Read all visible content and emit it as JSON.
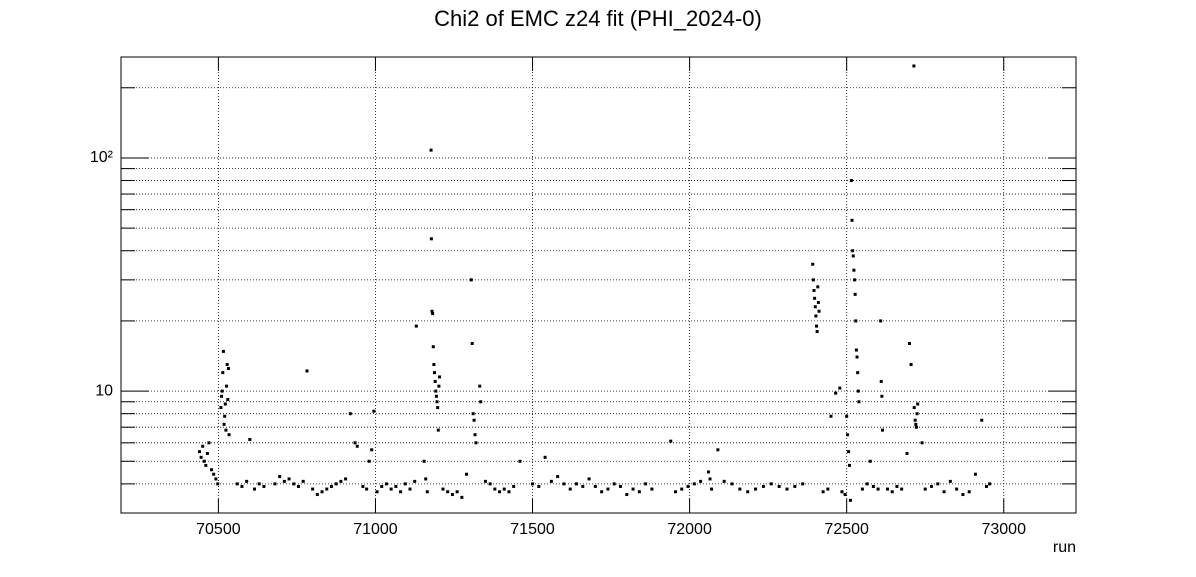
{
  "chart_data": {
    "type": "scatter",
    "title": "Chi2 of EMC z24 fit (PHI_2024-0)",
    "x_label": "run",
    "log_y": true,
    "grid": true,
    "color": "#000000",
    "xlim": [
      70190,
      73230
    ],
    "xticks": [
      70500,
      71000,
      71500,
      72000,
      72500,
      73000
    ],
    "ylim": [
      3,
      271
    ],
    "yticks": [
      10,
      {
        "value": 100,
        "label": "10²"
      }
    ],
    "minor_yticks": [
      4,
      5,
      6,
      7,
      8,
      9,
      20,
      30,
      40,
      50,
      60,
      70,
      80,
      90,
      200
    ],
    "x": [
      70440,
      70445,
      70450,
      70455,
      70460,
      70465,
      70470,
      70478,
      70485,
      70492,
      70498,
      70508,
      70510,
      70512,
      70514,
      70516,
      70518,
      70520,
      70522,
      70524,
      70526,
      70528,
      70530,
      70532,
      70534,
      70560,
      70575,
      70590,
      70600,
      70615,
      70630,
      70645,
      70680,
      70695,
      70710,
      70725,
      70740,
      70755,
      70770,
      70782,
      70800,
      70815,
      70830,
      70845,
      70860,
      70875,
      70890,
      70905,
      70920,
      70935,
      70942,
      70960,
      70972,
      70980,
      70988,
      70995,
      71005,
      71020,
      71035,
      71050,
      71065,
      71080,
      71095,
      71110,
      71125,
      71130,
      71155,
      71160,
      71165,
      71177,
      71178,
      71180,
      71182,
      71184,
      71186,
      71188,
      71190,
      71192,
      71194,
      71196,
      71198,
      71200,
      71202,
      71204,
      71215,
      71230,
      71245,
      71260,
      71275,
      71290,
      71305,
      71308,
      71311,
      71314,
      71317,
      71320,
      71332,
      71335,
      71350,
      71365,
      71380,
      71395,
      71410,
      71425,
      71440,
      71460,
      71500,
      71520,
      71540,
      71560,
      71580,
      71600,
      71620,
      71640,
      71660,
      71680,
      71700,
      71720,
      71740,
      71760,
      71780,
      71800,
      71820,
      71840,
      71860,
      71880,
      71940,
      71955,
      71975,
      71995,
      72015,
      72035,
      72060,
      72065,
      72070,
      72090,
      72110,
      72135,
      72160,
      72185,
      72210,
      72235,
      72260,
      72285,
      72310,
      72335,
      72360,
      72392,
      72394,
      72396,
      72398,
      72400,
      72402,
      72404,
      72406,
      72408,
      72410,
      72412,
      72425,
      72440,
      72450,
      72465,
      72478,
      72485,
      72495,
      72500,
      72503,
      72506,
      72509,
      72512,
      72515,
      72517,
      72519,
      72521,
      72523,
      72525,
      72527,
      72529,
      72531,
      72533,
      72535,
      72537,
      72539,
      72550,
      72565,
      72575,
      72585,
      72600,
      72608,
      72610,
      72612,
      72614,
      72630,
      72645,
      72660,
      72675,
      72692,
      72714,
      72700,
      72705,
      72715,
      72718,
      72720,
      72722,
      72724,
      72726,
      72740,
      72750,
      72770,
      72790,
      72810,
      72830,
      72850,
      72870,
      72890,
      72910,
      72930,
      72945,
      72955
    ],
    "values": [
      5.5,
      5.2,
      5.8,
      5.0,
      4.8,
      5.4,
      6.0,
      4.6,
      4.4,
      4.2,
      4.0,
      8.5,
      9.5,
      10,
      12,
      14.8,
      7.2,
      7.8,
      8.8,
      6.8,
      10.5,
      13,
      9.2,
      12.5,
      6.5,
      4.0,
      3.9,
      4.1,
      6.2,
      3.8,
      4.0,
      3.9,
      4.0,
      4.3,
      4.1,
      4.2,
      4.0,
      3.9,
      4.1,
      12.2,
      3.8,
      3.6,
      3.7,
      3.8,
      3.9,
      4.0,
      4.1,
      4.2,
      8.0,
      6.0,
      5.8,
      3.9,
      3.8,
      5.0,
      5.6,
      8.2,
      3.7,
      3.9,
      4.0,
      3.8,
      3.9,
      3.7,
      4.0,
      3.8,
      4.1,
      19,
      5.0,
      4.2,
      3.7,
      108,
      45,
      22,
      21.5,
      15.5,
      13,
      12,
      11,
      10,
      9.5,
      9,
      8.5,
      6.8,
      10.5,
      11.5,
      3.8,
      3.7,
      3.6,
      3.7,
      3.5,
      4.4,
      30,
      16,
      8,
      7.5,
      6.5,
      6.0,
      10.5,
      9.0,
      4.1,
      4.0,
      3.8,
      3.7,
      3.8,
      3.7,
      3.9,
      5.0,
      4.0,
      3.9,
      5.2,
      4.1,
      4.3,
      4.0,
      3.8,
      4.0,
      3.9,
      4.2,
      3.9,
      3.7,
      3.8,
      4.0,
      3.9,
      3.6,
      3.8,
      3.7,
      4.0,
      3.8,
      6.1,
      3.7,
      3.8,
      3.9,
      4.0,
      4.1,
      4.5,
      4.2,
      3.8,
      5.6,
      4.1,
      4.0,
      3.8,
      3.7,
      3.8,
      3.9,
      4.0,
      3.9,
      3.8,
      3.9,
      4.0,
      35,
      30,
      27,
      25,
      23,
      21,
      19,
      18,
      28,
      24,
      22,
      3.7,
      3.8,
      7.8,
      9.8,
      10.3,
      3.7,
      3.6,
      7.8,
      6.5,
      5.5,
      4.8,
      3.4,
      80,
      54,
      40,
      38,
      33,
      30,
      26,
      20,
      15,
      14,
      12,
      10,
      9,
      3.8,
      4.0,
      5.0,
      3.9,
      3.8,
      20,
      11,
      9.5,
      6.8,
      3.8,
      3.7,
      3.9,
      3.8,
      5.4,
      248,
      16,
      13,
      8.5,
      7.5,
      7.2,
      7.0,
      8.0,
      8.8,
      6.0,
      3.8,
      3.9,
      4.0,
      3.7,
      4.1,
      3.8,
      3.6,
      3.7,
      4.4,
      7.5,
      3.9,
      4.0
    ]
  }
}
